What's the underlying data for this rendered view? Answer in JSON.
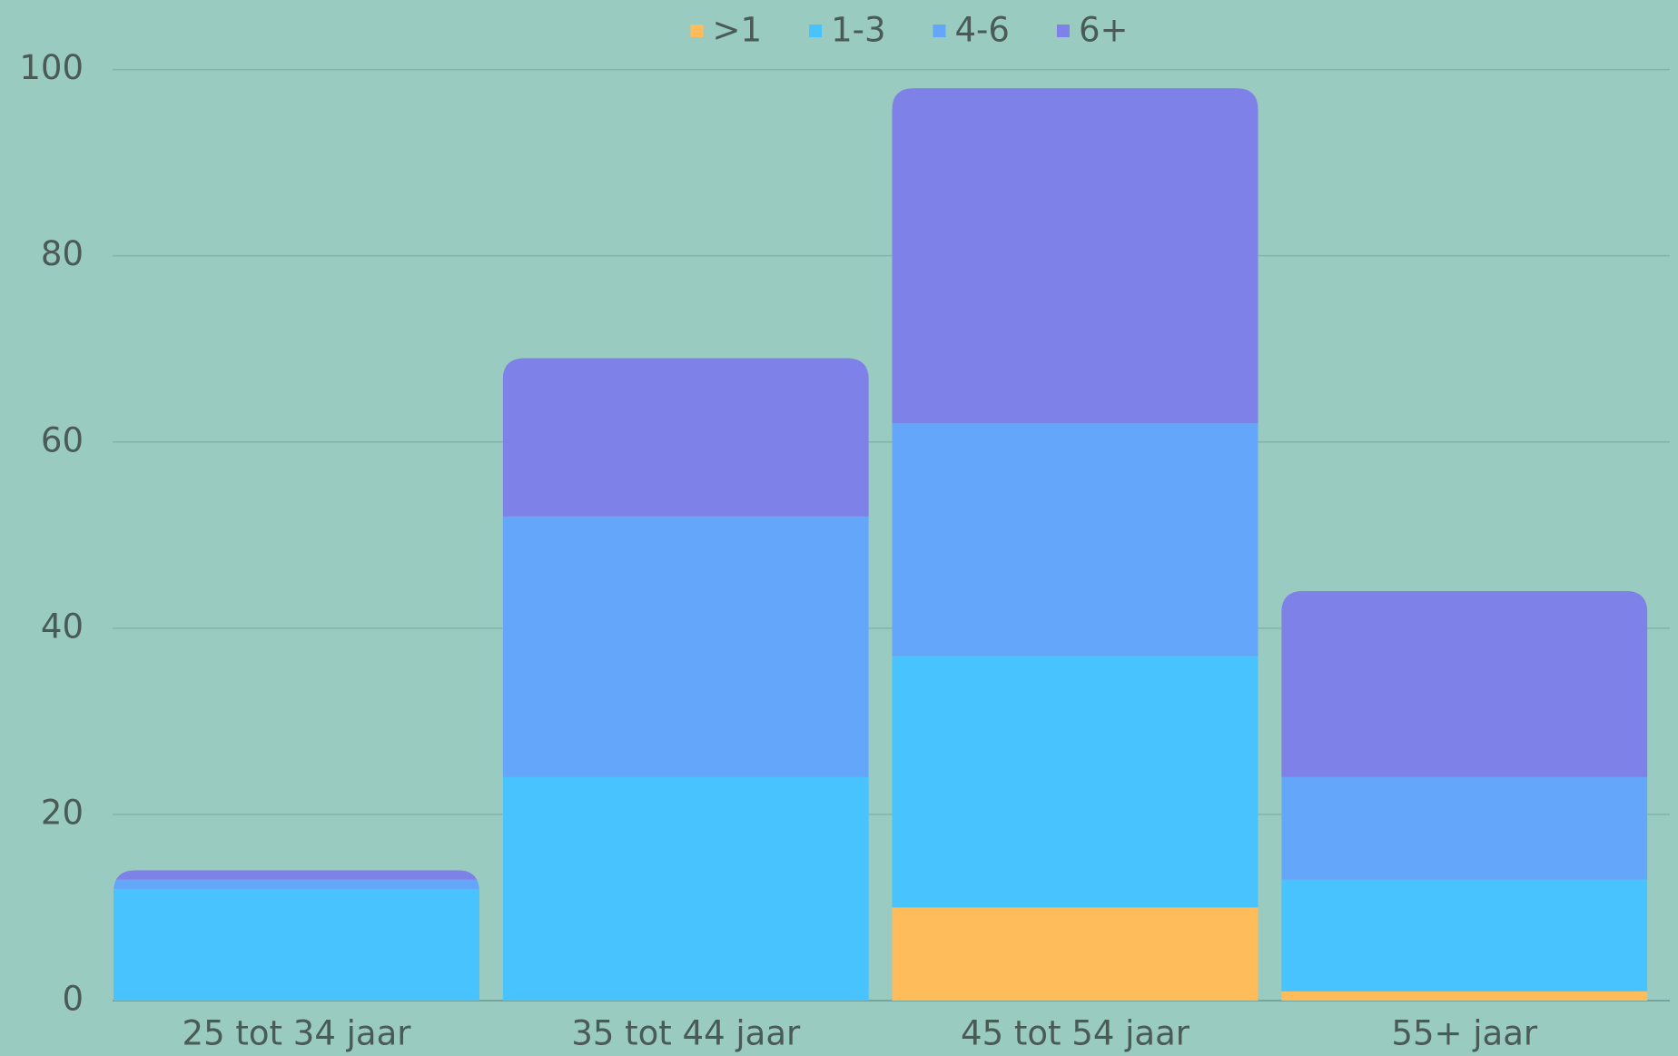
{
  "chart_data": {
    "type": "stacked_bar",
    "categories": [
      "25 tot 34 jaar",
      "35 tot 44 jaar",
      "45 tot 54 jaar",
      "55+ jaar"
    ],
    "series": [
      {
        "name": ">1",
        "color": "#ffbc5a",
        "values": [
          0,
          0,
          10,
          1
        ]
      },
      {
        "name": "1-3",
        "color": "#48c3fe",
        "values": [
          12,
          24,
          27,
          12
        ]
      },
      {
        "name": "4-6",
        "color": "#64a6f9",
        "values": [
          1,
          28,
          25,
          11
        ]
      },
      {
        "name": "6+",
        "color": "#7e81e8",
        "values": [
          1,
          17,
          36,
          20
        ]
      }
    ],
    "ylim": [
      0,
      100
    ],
    "yticks": [
      0,
      20,
      40,
      60,
      80,
      100
    ],
    "grid": true,
    "legend": "top"
  }
}
